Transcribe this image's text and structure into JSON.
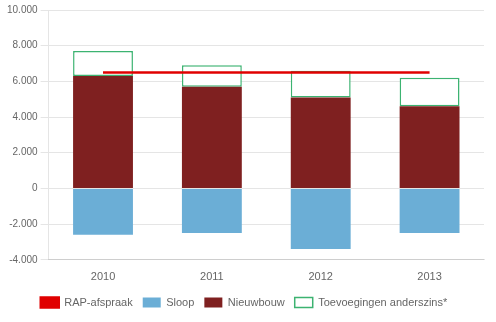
{
  "chart_data": {
    "type": "bar",
    "categories": [
      "2010",
      "2011",
      "2012",
      "2013"
    ],
    "series": [
      {
        "name": "Sloop",
        "color": "#6baed6",
        "values": [
          -2600,
          -2500,
          -3400,
          -2500
        ]
      },
      {
        "name": "Nieuwbouw",
        "color": "#7f2020",
        "values": [
          6300,
          5700,
          5100,
          4600
        ]
      },
      {
        "name": "Toevoegingen anderszins*",
        "color": "#3cb371",
        "values": [
          1400,
          1200,
          1500,
          1600
        ]
      },
      {
        "name": "RAP-afspraak",
        "type": "line",
        "color": "#e00000",
        "values": [
          6500,
          6500,
          6500,
          6500
        ]
      }
    ],
    "stacked": true,
    "ylim": [
      -4000,
      10000
    ],
    "yticks": [
      {
        "value": -4000,
        "label": "-4.000"
      },
      {
        "value": -2000,
        "label": "-2.000"
      },
      0,
      {
        "value": 2000,
        "label": "2.000"
      },
      {
        "value": 4000,
        "label": "4.000"
      },
      {
        "value": 6000,
        "label": "6.000"
      },
      {
        "value": 8000,
        "label": "8.000"
      },
      {
        "value": 10000,
        "label": "10.000"
      }
    ],
    "grid": true,
    "legend": "bottom"
  }
}
